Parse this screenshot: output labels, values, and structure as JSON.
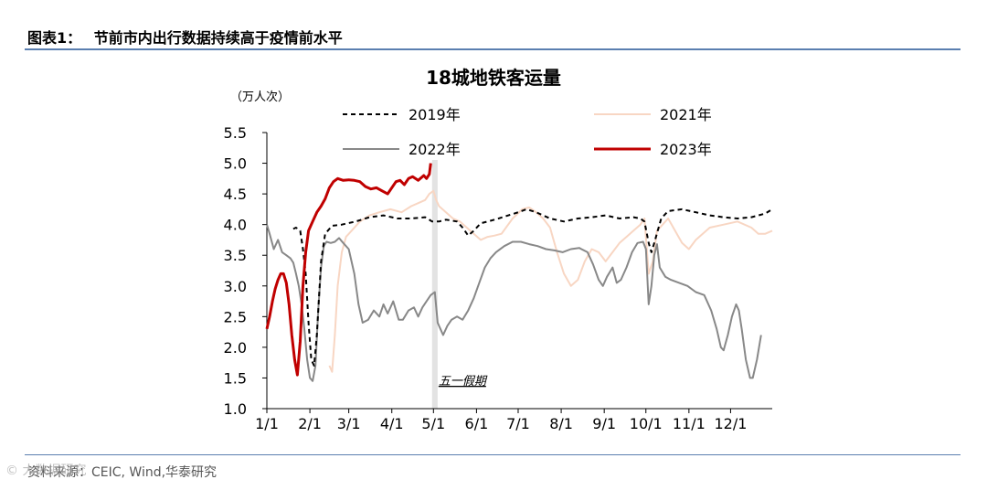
{
  "header": {
    "label": "图表1：",
    "title": "节前市内出行数据持续高于疫情前水平"
  },
  "footer": {
    "source": "资料来源：CEIC, Wind,华泰研究",
    "watermark": "© 大数据研究"
  },
  "chart_data": {
    "type": "line",
    "title": "18城地铁客运量",
    "ylabel": "（万人次）",
    "ylim": [
      1.0,
      5.5
    ],
    "yticks": [
      "1.0",
      "1.5",
      "2.0",
      "2.5",
      "3.0",
      "3.5",
      "4.0",
      "4.5",
      "5.0",
      "5.5"
    ],
    "xticks": [
      {
        "label": "1/1",
        "day": 1
      },
      {
        "label": "2/1",
        "day": 32
      },
      {
        "label": "3/1",
        "day": 60
      },
      {
        "label": "4/1",
        "day": 91
      },
      {
        "label": "5/1",
        "day": 121
      },
      {
        "label": "6/1",
        "day": 152
      },
      {
        "label": "7/1",
        "day": 182
      },
      {
        "label": "8/1",
        "day": 213
      },
      {
        "label": "9/1",
        "day": 244
      },
      {
        "label": "10/1",
        "day": 274
      },
      {
        "label": "11/1",
        "day": 305
      },
      {
        "label": "12/1",
        "day": 335
      }
    ],
    "xrange_days": [
      1,
      365
    ],
    "annotation": {
      "label": "五一假期",
      "start_day": 120,
      "end_day": 124
    },
    "legend_placement": "top",
    "series": [
      {
        "name": "2019年",
        "color": "#000000",
        "style": "dashed",
        "points": [
          [
            20,
            3.93
          ],
          [
            22,
            3.95
          ],
          [
            25,
            3.9
          ],
          [
            27,
            3.6
          ],
          [
            29,
            3.2
          ],
          [
            31,
            2.4
          ],
          [
            33,
            1.8
          ],
          [
            35,
            1.7
          ],
          [
            37,
            2.2
          ],
          [
            40,
            3.4
          ],
          [
            43,
            3.85
          ],
          [
            48,
            3.98
          ],
          [
            55,
            4.0
          ],
          [
            65,
            4.05
          ],
          [
            75,
            4.12
          ],
          [
            85,
            4.15
          ],
          [
            95,
            4.1
          ],
          [
            105,
            4.1
          ],
          [
            115,
            4.12
          ],
          [
            120,
            4.05
          ],
          [
            125,
            4.05
          ],
          [
            130,
            4.08
          ],
          [
            138,
            4.05
          ],
          [
            142,
            3.95
          ],
          [
            146,
            3.82
          ],
          [
            150,
            3.9
          ],
          [
            155,
            4.02
          ],
          [
            165,
            4.08
          ],
          [
            175,
            4.15
          ],
          [
            182,
            4.2
          ],
          [
            188,
            4.25
          ],
          [
            195,
            4.2
          ],
          [
            205,
            4.1
          ],
          [
            215,
            4.05
          ],
          [
            225,
            4.1
          ],
          [
            235,
            4.12
          ],
          [
            245,
            4.15
          ],
          [
            255,
            4.1
          ],
          [
            265,
            4.12
          ],
          [
            270,
            4.1
          ],
          [
            273,
            4.05
          ],
          [
            276,
            3.7
          ],
          [
            278,
            3.55
          ],
          [
            280,
            3.7
          ],
          [
            285,
            4.1
          ],
          [
            290,
            4.22
          ],
          [
            300,
            4.25
          ],
          [
            310,
            4.2
          ],
          [
            320,
            4.15
          ],
          [
            330,
            4.12
          ],
          [
            340,
            4.1
          ],
          [
            350,
            4.12
          ],
          [
            360,
            4.18
          ],
          [
            365,
            4.25
          ]
        ]
      },
      {
        "name": "2021年",
        "color": "#f8d6c3",
        "style": "solid",
        "points": [
          [
            46,
            1.7
          ],
          [
            48,
            1.6
          ],
          [
            50,
            2.2
          ],
          [
            52,
            3.0
          ],
          [
            55,
            3.55
          ],
          [
            58,
            3.8
          ],
          [
            62,
            3.9
          ],
          [
            68,
            4.05
          ],
          [
            75,
            4.15
          ],
          [
            82,
            4.2
          ],
          [
            90,
            4.25
          ],
          [
            98,
            4.2
          ],
          [
            105,
            4.3
          ],
          [
            110,
            4.35
          ],
          [
            115,
            4.4
          ],
          [
            118,
            4.5
          ],
          [
            121,
            4.55
          ],
          [
            123,
            4.4
          ],
          [
            125,
            4.3
          ],
          [
            130,
            4.2
          ],
          [
            135,
            4.1
          ],
          [
            140,
            4.05
          ],
          [
            145,
            3.95
          ],
          [
            150,
            3.85
          ],
          [
            155,
            3.75
          ],
          [
            160,
            3.8
          ],
          [
            165,
            3.82
          ],
          [
            170,
            3.85
          ],
          [
            178,
            4.1
          ],
          [
            185,
            4.25
          ],
          [
            190,
            4.28
          ],
          [
            195,
            4.2
          ],
          [
            200,
            4.1
          ],
          [
            205,
            3.95
          ],
          [
            210,
            3.55
          ],
          [
            215,
            3.2
          ],
          [
            220,
            3.0
          ],
          [
            225,
            3.1
          ],
          [
            230,
            3.4
          ],
          [
            235,
            3.6
          ],
          [
            240,
            3.55
          ],
          [
            245,
            3.4
          ],
          [
            250,
            3.55
          ],
          [
            255,
            3.7
          ],
          [
            260,
            3.8
          ],
          [
            265,
            3.9
          ],
          [
            270,
            4.0
          ],
          [
            273,
            4.1
          ],
          [
            276,
            3.2
          ],
          [
            279,
            3.4
          ],
          [
            282,
            3.9
          ],
          [
            290,
            4.1
          ],
          [
            300,
            3.7
          ],
          [
            305,
            3.6
          ],
          [
            310,
            3.75
          ],
          [
            320,
            3.95
          ],
          [
            330,
            4.0
          ],
          [
            340,
            4.05
          ],
          [
            350,
            3.95
          ],
          [
            355,
            3.85
          ],
          [
            360,
            3.85
          ],
          [
            365,
            3.9
          ]
        ]
      },
      {
        "name": "2022年",
        "color": "#888888",
        "style": "solid",
        "points": [
          [
            1,
            4.0
          ],
          [
            3,
            3.85
          ],
          [
            6,
            3.6
          ],
          [
            9,
            3.75
          ],
          [
            12,
            3.55
          ],
          [
            15,
            3.5
          ],
          [
            18,
            3.45
          ],
          [
            20,
            3.38
          ],
          [
            22,
            3.2
          ],
          [
            24,
            3.0
          ],
          [
            26,
            2.7
          ],
          [
            28,
            2.3
          ],
          [
            30,
            1.8
          ],
          [
            32,
            1.5
          ],
          [
            34,
            1.45
          ],
          [
            36,
            1.7
          ],
          [
            38,
            2.6
          ],
          [
            40,
            3.3
          ],
          [
            42,
            3.65
          ],
          [
            44,
            3.72
          ],
          [
            47,
            3.7
          ],
          [
            50,
            3.72
          ],
          [
            53,
            3.78
          ],
          [
            56,
            3.7
          ],
          [
            60,
            3.6
          ],
          [
            64,
            3.2
          ],
          [
            67,
            2.7
          ],
          [
            70,
            2.4
          ],
          [
            74,
            2.45
          ],
          [
            78,
            2.6
          ],
          [
            82,
            2.5
          ],
          [
            85,
            2.7
          ],
          [
            88,
            2.55
          ],
          [
            92,
            2.75
          ],
          [
            96,
            2.45
          ],
          [
            99,
            2.45
          ],
          [
            103,
            2.6
          ],
          [
            107,
            2.65
          ],
          [
            110,
            2.5
          ],
          [
            113,
            2.65
          ],
          [
            116,
            2.75
          ],
          [
            119,
            2.85
          ],
          [
            122,
            2.9
          ],
          [
            124,
            2.4
          ],
          [
            126,
            2.3
          ],
          [
            128,
            2.2
          ],
          [
            131,
            2.35
          ],
          [
            134,
            2.45
          ],
          [
            138,
            2.5
          ],
          [
            142,
            2.45
          ],
          [
            146,
            2.6
          ],
          [
            150,
            2.8
          ],
          [
            154,
            3.05
          ],
          [
            158,
            3.3
          ],
          [
            162,
            3.45
          ],
          [
            166,
            3.55
          ],
          [
            172,
            3.65
          ],
          [
            178,
            3.72
          ],
          [
            184,
            3.72
          ],
          [
            190,
            3.68
          ],
          [
            196,
            3.65
          ],
          [
            202,
            3.6
          ],
          [
            208,
            3.58
          ],
          [
            214,
            3.55
          ],
          [
            220,
            3.6
          ],
          [
            226,
            3.62
          ],
          [
            232,
            3.55
          ],
          [
            236,
            3.35
          ],
          [
            240,
            3.1
          ],
          [
            243,
            3.0
          ],
          [
            246,
            3.15
          ],
          [
            250,
            3.3
          ],
          [
            253,
            3.05
          ],
          [
            256,
            3.1
          ],
          [
            260,
            3.3
          ],
          [
            264,
            3.55
          ],
          [
            268,
            3.7
          ],
          [
            272,
            3.72
          ],
          [
            274,
            3.6
          ],
          [
            276,
            2.7
          ],
          [
            278,
            3.0
          ],
          [
            280,
            3.5
          ],
          [
            282,
            3.68
          ],
          [
            284,
            3.3
          ],
          [
            288,
            3.15
          ],
          [
            292,
            3.1
          ],
          [
            298,
            3.05
          ],
          [
            304,
            3.0
          ],
          [
            310,
            2.9
          ],
          [
            316,
            2.85
          ],
          [
            321,
            2.6
          ],
          [
            325,
            2.3
          ],
          [
            328,
            2.0
          ],
          [
            330,
            1.95
          ],
          [
            333,
            2.2
          ],
          [
            336,
            2.5
          ],
          [
            339,
            2.7
          ],
          [
            341,
            2.6
          ],
          [
            343,
            2.3
          ],
          [
            346,
            1.8
          ],
          [
            349,
            1.5
          ],
          [
            351,
            1.5
          ],
          [
            354,
            1.8
          ],
          [
            357,
            2.2
          ]
        ]
      },
      {
        "name": "2023年",
        "color": "#c00000",
        "style": "solid",
        "points": [
          [
            1,
            2.3
          ],
          [
            3,
            2.5
          ],
          [
            5,
            2.75
          ],
          [
            7,
            2.95
          ],
          [
            9,
            3.1
          ],
          [
            11,
            3.2
          ],
          [
            13,
            3.2
          ],
          [
            15,
            3.05
          ],
          [
            17,
            2.7
          ],
          [
            19,
            2.2
          ],
          [
            21,
            1.8
          ],
          [
            23,
            1.55
          ],
          [
            25,
            2.1
          ],
          [
            27,
            3.0
          ],
          [
            29,
            3.55
          ],
          [
            31,
            3.9
          ],
          [
            34,
            4.05
          ],
          [
            37,
            4.2
          ],
          [
            40,
            4.3
          ],
          [
            43,
            4.42
          ],
          [
            46,
            4.6
          ],
          [
            49,
            4.7
          ],
          [
            52,
            4.75
          ],
          [
            56,
            4.72
          ],
          [
            60,
            4.73
          ],
          [
            64,
            4.72
          ],
          [
            68,
            4.7
          ],
          [
            72,
            4.62
          ],
          [
            76,
            4.58
          ],
          [
            80,
            4.6
          ],
          [
            84,
            4.55
          ],
          [
            88,
            4.5
          ],
          [
            91,
            4.6
          ],
          [
            94,
            4.7
          ],
          [
            97,
            4.72
          ],
          [
            100,
            4.65
          ],
          [
            103,
            4.75
          ],
          [
            106,
            4.78
          ],
          [
            110,
            4.72
          ],
          [
            114,
            4.8
          ],
          [
            116,
            4.75
          ],
          [
            118,
            4.82
          ],
          [
            119,
            5.0
          ]
        ]
      }
    ]
  }
}
